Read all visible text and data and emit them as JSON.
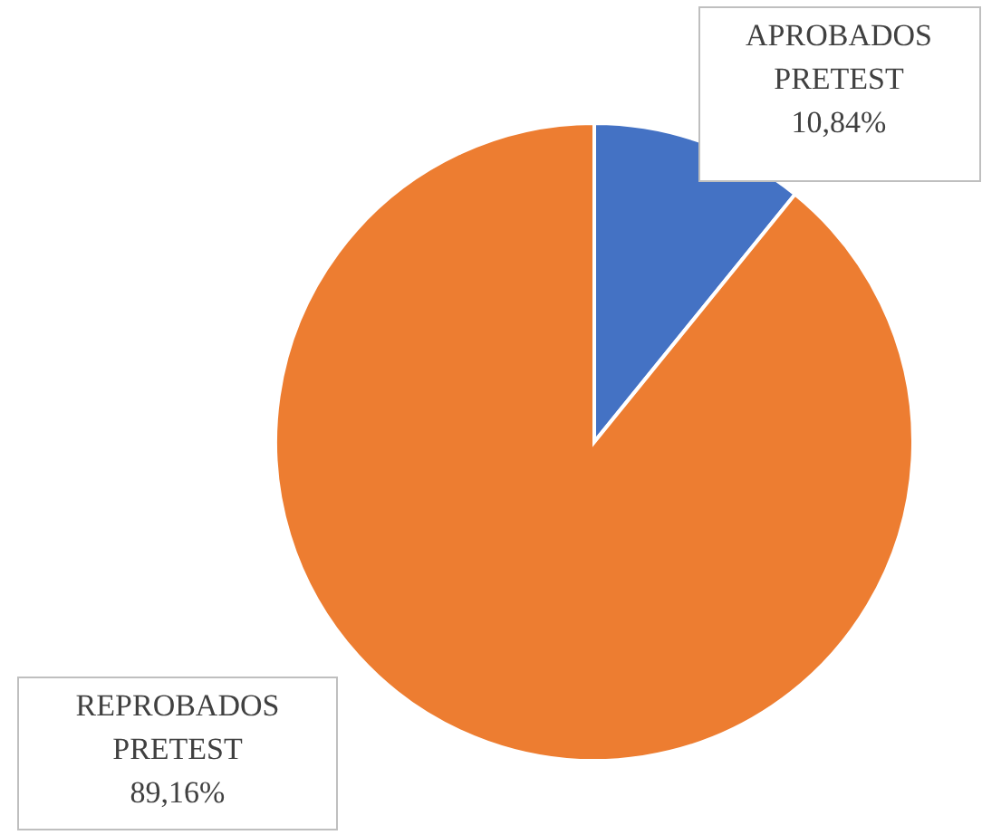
{
  "chart_data": {
    "type": "pie",
    "categories": [
      "APROBADOS PRETEST",
      "REPROBADOS PRETEST"
    ],
    "values": [
      10.84,
      89.16
    ],
    "colors": [
      "#4472c4",
      "#ed7d31"
    ],
    "value_labels": [
      "10,84%",
      "89,16%"
    ]
  }
}
